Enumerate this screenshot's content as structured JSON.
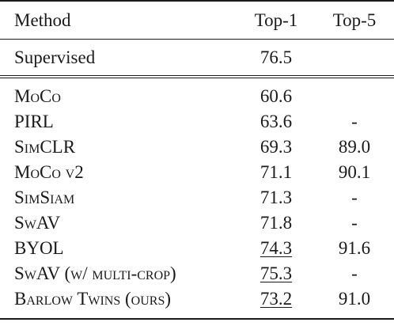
{
  "table": {
    "header": {
      "method": "Method",
      "top1": "Top-1",
      "top5": "Top-5"
    },
    "supervised": {
      "method": "Supervised",
      "top1": "76.5",
      "top5": ""
    },
    "rows": [
      {
        "method": "MoCo",
        "top1": "60.6",
        "top5": "",
        "smallcaps": true,
        "underline_top1": false
      },
      {
        "method": "PIRL",
        "top1": "63.6",
        "top5": "-",
        "smallcaps": false,
        "underline_top1": false
      },
      {
        "method": "SimCLR",
        "top1": "69.3",
        "top5": "89.0",
        "smallcaps": true,
        "underline_top1": false
      },
      {
        "method": "MoCo v2",
        "top1": "71.1",
        "top5": "90.1",
        "smallcaps": true,
        "underline_top1": false
      },
      {
        "method": "SimSiam",
        "top1": "71.3",
        "top5": "-",
        "smallcaps": true,
        "underline_top1": false
      },
      {
        "method": "SwAV",
        "top1": "71.8",
        "top5": "-",
        "smallcaps": true,
        "underline_top1": false
      },
      {
        "method": "BYOL",
        "top1": "74.3",
        "top5": "91.6",
        "smallcaps": false,
        "underline_top1": true
      },
      {
        "method": "SwAV (w/ multi-crop)",
        "top1": "75.3",
        "top5": "-",
        "smallcaps": true,
        "underline_top1": true
      },
      {
        "method": "Barlow Twins (ours)",
        "top1": "73.2",
        "top5": "91.0",
        "smallcaps": true,
        "underline_top1": true
      }
    ]
  }
}
